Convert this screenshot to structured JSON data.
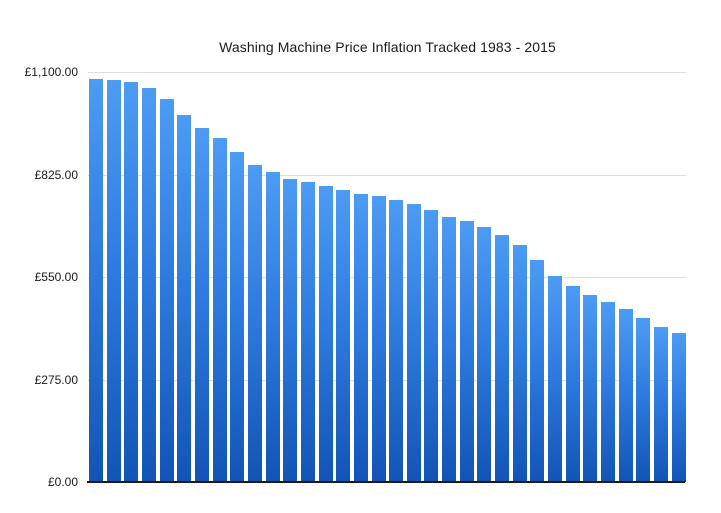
{
  "chart_data": {
    "type": "bar",
    "title": "Washing Machine Price Inflation Tracked 1983 - 2015",
    "xlabel": "",
    "ylabel": "",
    "currency": "£",
    "ylim": [
      0,
      1100
    ],
    "y_tick_labels": [
      "£1,100.00",
      "£825.00",
      "£550.00",
      "£275.00",
      "£0.00"
    ],
    "y_tick_values": [
      1100,
      825,
      550,
      275,
      0
    ],
    "x_axis_labels_visible": false,
    "x_axis_implied_range": "1983 - 2015",
    "grid": "horizontal",
    "legend": "none",
    "bar_count": 34,
    "values": [
      1081,
      1078,
      1072,
      1057,
      1027,
      986,
      951,
      922,
      885,
      850,
      831,
      813,
      804,
      794,
      783,
      772,
      767,
      756,
      746,
      731,
      712,
      699,
      683,
      664,
      637,
      596,
      554,
      527,
      503,
      482,
      465,
      440,
      417,
      401
    ]
  },
  "colors": {
    "bar_gradient_top": "#4C9CF4",
    "bar_gradient_mid": "#2F7CE0",
    "bar_gradient_bottom": "#1254B5",
    "gridline": "#DEDEDE",
    "axis_line": "#1A1A1A",
    "text": "#1A1A1A",
    "background": "#FFFFFF"
  }
}
